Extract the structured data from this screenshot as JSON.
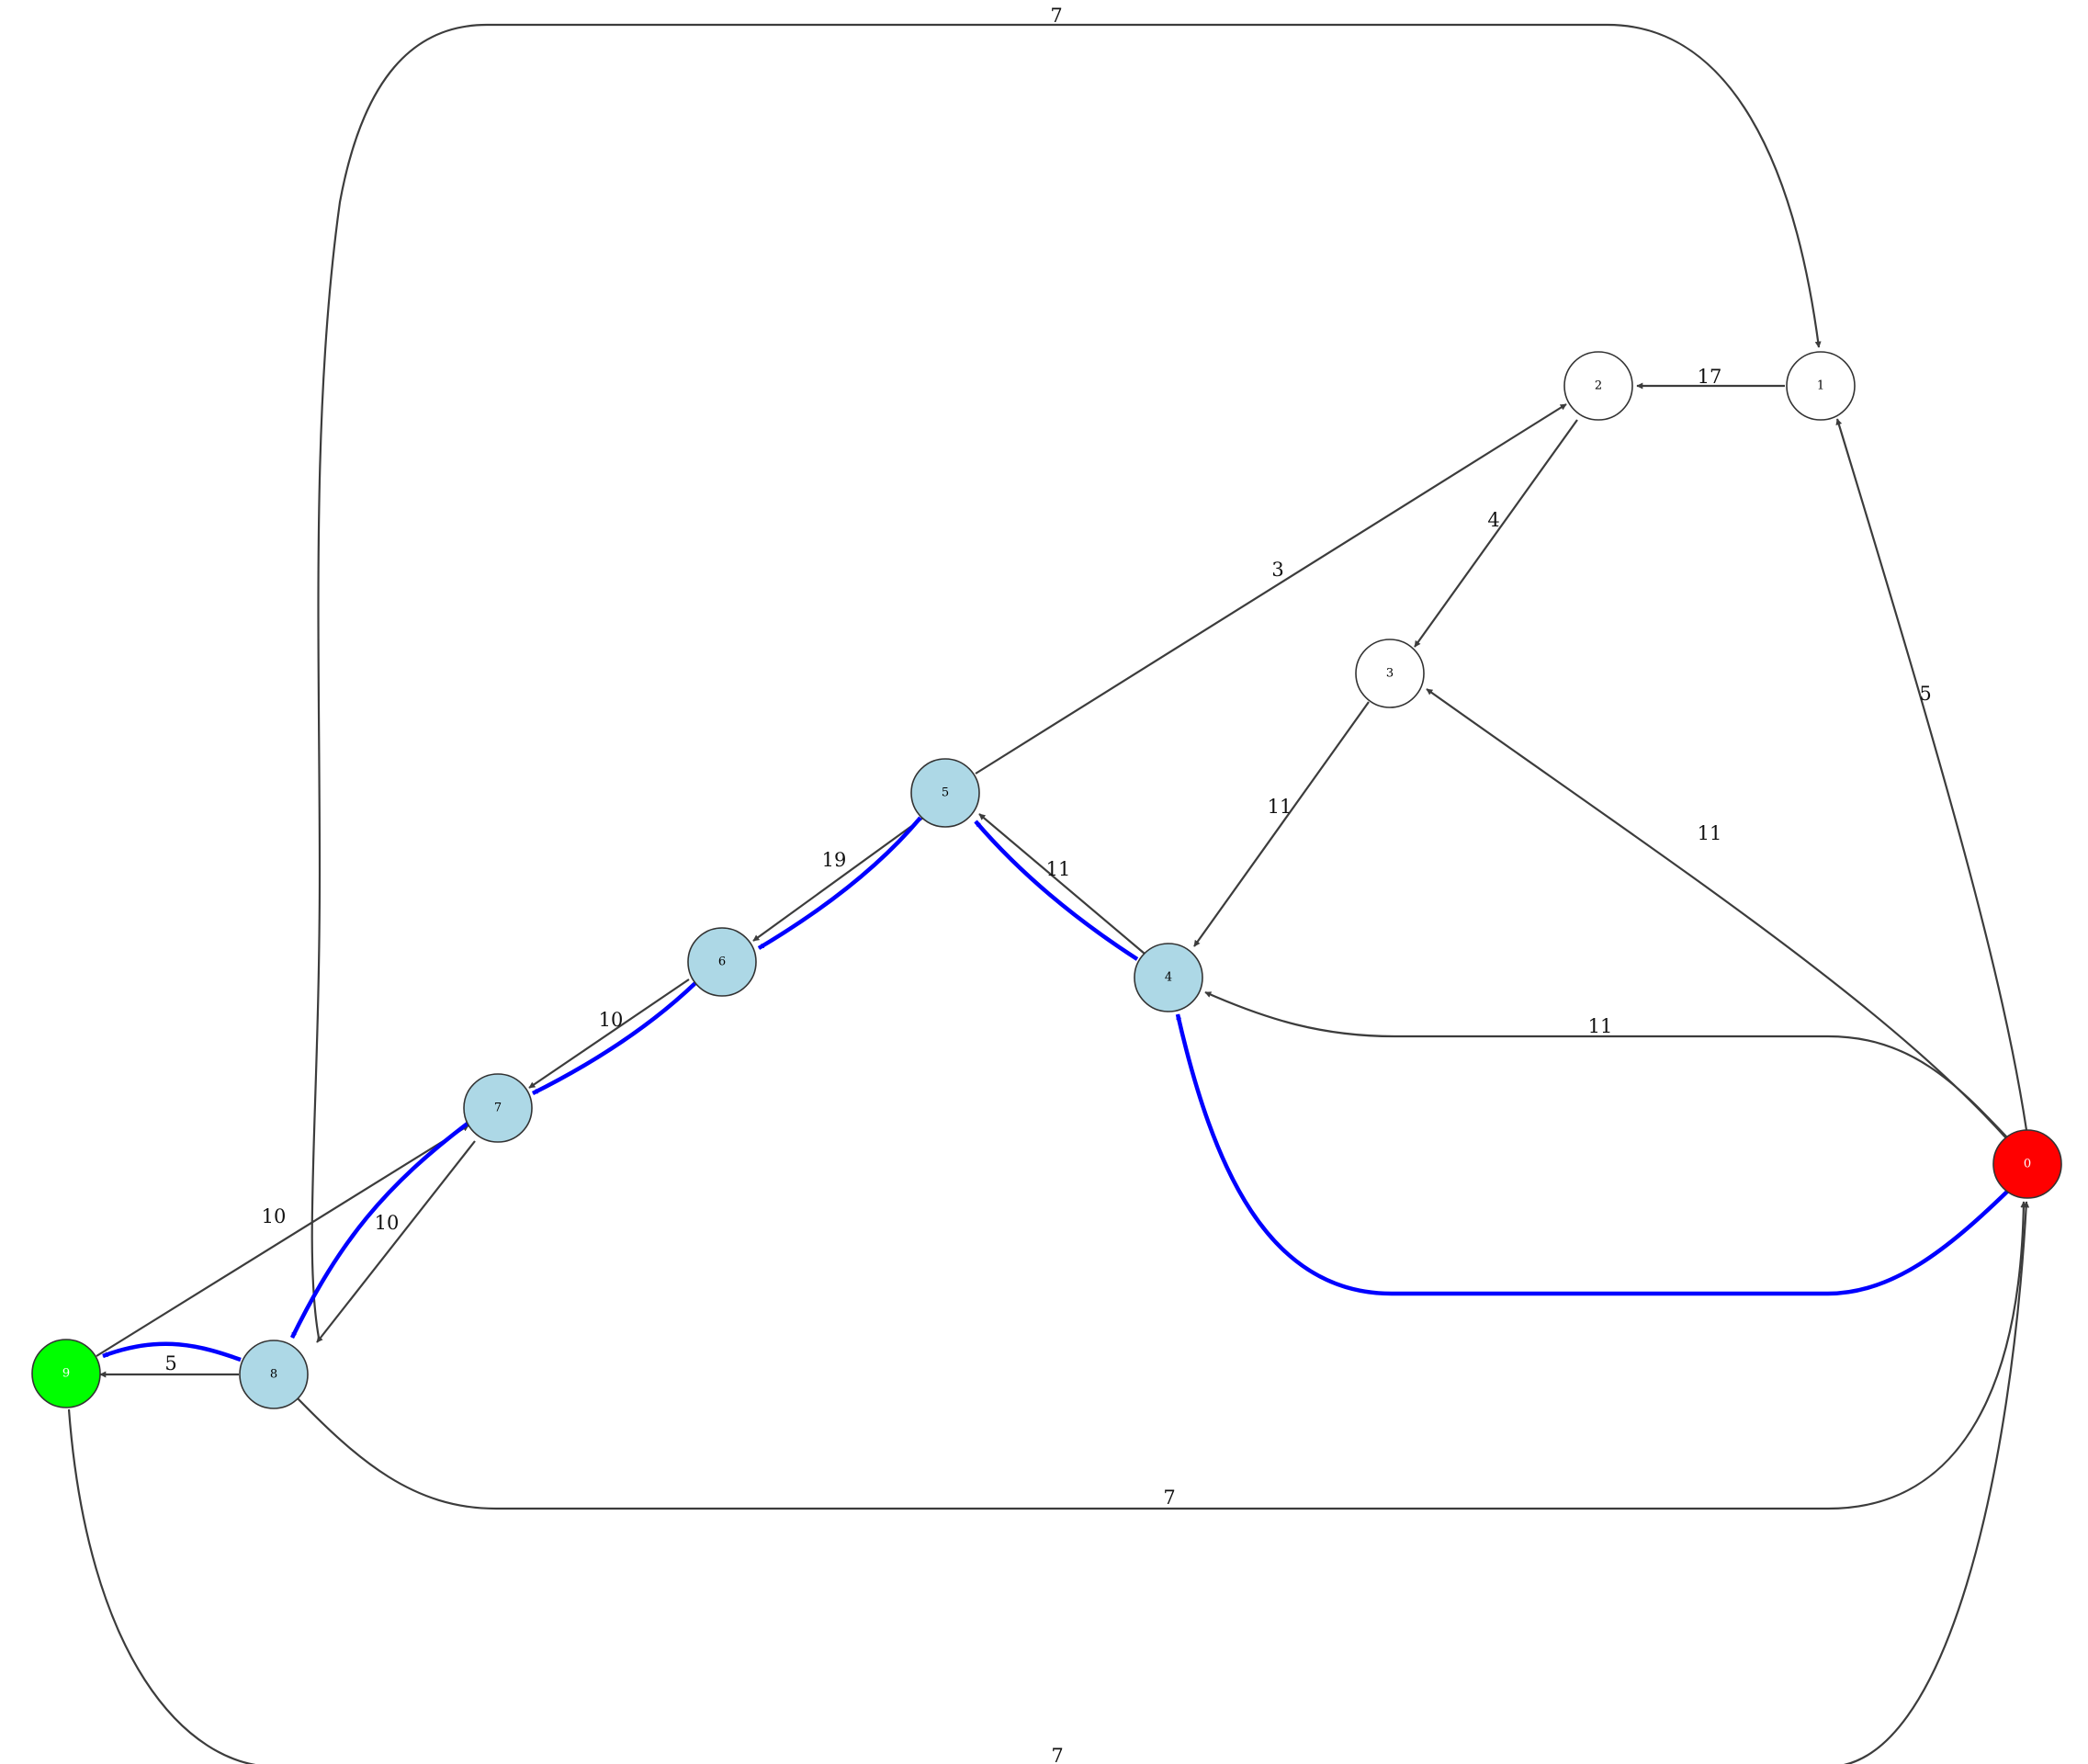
{
  "graph": {
    "colors": {
      "default_node": "#ffffff",
      "path_node": "#add8e6",
      "source_node": "#ff0000",
      "target_node": "#00ff00",
      "edge": "#3c3c3c",
      "path_edge": "#0000ff"
    },
    "nodes": [
      {
        "id": "0",
        "label": "0",
        "role": "source"
      },
      {
        "id": "1",
        "label": "1",
        "role": "default"
      },
      {
        "id": "2",
        "label": "2",
        "role": "default"
      },
      {
        "id": "3",
        "label": "3",
        "role": "default"
      },
      {
        "id": "4",
        "label": "4",
        "role": "path"
      },
      {
        "id": "5",
        "label": "5",
        "role": "path"
      },
      {
        "id": "6",
        "label": "6",
        "role": "path"
      },
      {
        "id": "7",
        "label": "7",
        "role": "path"
      },
      {
        "id": "8",
        "label": "8",
        "role": "path"
      },
      {
        "id": "9",
        "label": "9",
        "role": "target"
      }
    ],
    "edges": [
      {
        "from": "8",
        "to": "1",
        "weight": "7"
      },
      {
        "from": "1",
        "to": "2",
        "weight": "17"
      },
      {
        "from": "0",
        "to": "1",
        "weight": "5"
      },
      {
        "from": "2",
        "to": "3",
        "weight": "4"
      },
      {
        "from": "5",
        "to": "2",
        "weight": "3"
      },
      {
        "from": "3",
        "to": "4",
        "weight": "11"
      },
      {
        "from": "0",
        "to": "3",
        "weight": "11"
      },
      {
        "from": "4",
        "to": "5",
        "weight": "11"
      },
      {
        "from": "5",
        "to": "6",
        "weight": "19"
      },
      {
        "from": "6",
        "to": "7",
        "weight": "10"
      },
      {
        "from": "0",
        "to": "4",
        "weight": "11"
      },
      {
        "from": "9",
        "to": "7",
        "weight": "10"
      },
      {
        "from": "7",
        "to": "8",
        "weight": "10"
      },
      {
        "from": "8",
        "to": "9",
        "weight": "5"
      },
      {
        "from": "8",
        "to": "0",
        "weight": "7"
      },
      {
        "from": "9",
        "to": "0",
        "weight": "7"
      }
    ],
    "highlighted_path": [
      "0",
      "4",
      "5",
      "6",
      "7",
      "8",
      "9"
    ]
  }
}
